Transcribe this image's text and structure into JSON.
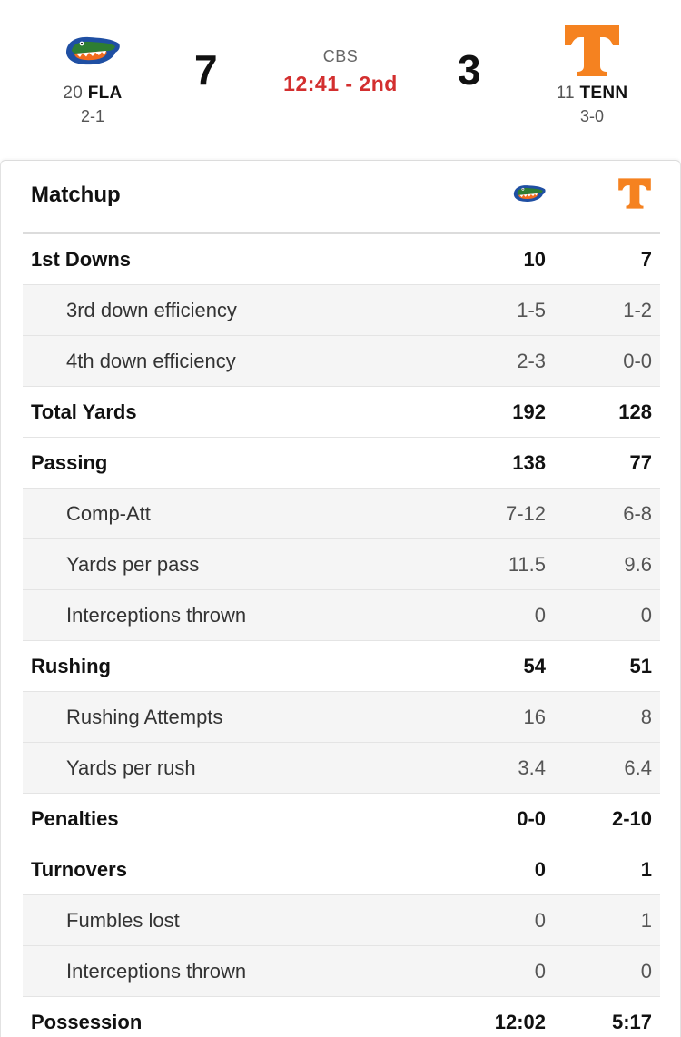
{
  "game": {
    "network": "CBS",
    "clock": "12:41 - 2nd",
    "away": {
      "rank": "20",
      "abbr": "FLA",
      "record": "2-1",
      "score": "7",
      "logo": "gator-head-icon"
    },
    "home": {
      "rank": "11",
      "abbr": "TENN",
      "record": "3-0",
      "score": "3",
      "logo": "power-t-icon"
    }
  },
  "colors": {
    "clock": "#d32f2f",
    "gator_blue": "#1f4fa3",
    "gator_green": "#2e7d32",
    "gator_orange": "#f26b1d",
    "tenn_orange": "#f58220"
  },
  "matchup": {
    "title": "Matchup",
    "rows": [
      {
        "label": "1st Downs",
        "away": "10",
        "home": "7",
        "level": "main"
      },
      {
        "label": "3rd down efficiency",
        "away": "1-5",
        "home": "1-2",
        "level": "sub"
      },
      {
        "label": "4th down efficiency",
        "away": "2-3",
        "home": "0-0",
        "level": "sub"
      },
      {
        "label": "Total Yards",
        "away": "192",
        "home": "128",
        "level": "main"
      },
      {
        "label": "Passing",
        "away": "138",
        "home": "77",
        "level": "main"
      },
      {
        "label": "Comp-Att",
        "away": "7-12",
        "home": "6-8",
        "level": "sub"
      },
      {
        "label": "Yards per pass",
        "away": "11.5",
        "home": "9.6",
        "level": "sub"
      },
      {
        "label": "Interceptions thrown",
        "away": "0",
        "home": "0",
        "level": "sub"
      },
      {
        "label": "Rushing",
        "away": "54",
        "home": "51",
        "level": "main"
      },
      {
        "label": "Rushing Attempts",
        "away": "16",
        "home": "8",
        "level": "sub"
      },
      {
        "label": "Yards per rush",
        "away": "3.4",
        "home": "6.4",
        "level": "sub"
      },
      {
        "label": "Penalties",
        "away": "0-0",
        "home": "2-10",
        "level": "main"
      },
      {
        "label": "Turnovers",
        "away": "0",
        "home": "1",
        "level": "main"
      },
      {
        "label": "Fumbles lost",
        "away": "0",
        "home": "1",
        "level": "sub"
      },
      {
        "label": "Interceptions thrown",
        "away": "0",
        "home": "0",
        "level": "sub"
      },
      {
        "label": "Possession",
        "away": "12:02",
        "home": "5:17",
        "level": "main"
      }
    ]
  }
}
